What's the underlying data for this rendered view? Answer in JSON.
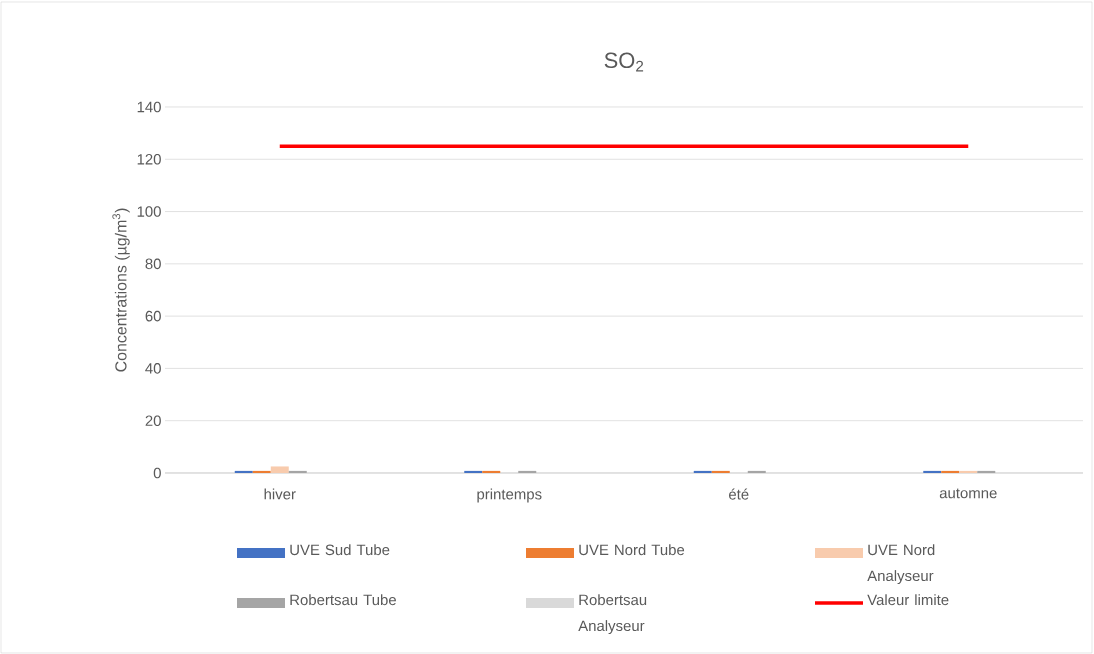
{
  "chart_data": {
    "type": "bar",
    "title": "SO$_{2}$",
    "ylabel": "Concentrations (µg/m$^{3}$)",
    "categories": [
      "hiver",
      "printemps",
      "été",
      "automne"
    ],
    "series": [
      {
        "name": "UVE Sud Tube",
        "color": "#4472c4",
        "values": [
          0.8,
          0.8,
          0.8,
          0.8
        ]
      },
      {
        "name": "UVE Nord Tube",
        "color": "#ed7d31",
        "values": [
          0.8,
          0.8,
          0.8,
          0.8
        ]
      },
      {
        "name": "UVE Nord Analyseur",
        "color": "#f8cbad",
        "values": [
          2.5,
          null,
          null,
          0.8
        ]
      },
      {
        "name": "Robertsau Tube",
        "color": "#a5a5a5",
        "values": [
          0.8,
          0.8,
          0.8,
          0.8
        ]
      },
      {
        "name": "Robertsau Analyseur",
        "color": "#d9d9d9",
        "values": [
          null,
          null,
          null,
          null
        ]
      },
      {
        "name": "Valeur limite",
        "type": "line",
        "color": "#ff0000",
        "values": [
          125,
          125,
          125,
          125
        ]
      }
    ],
    "ylim": [
      0,
      140
    ],
    "yticks": [
      0,
      20,
      40,
      60,
      80,
      100,
      120,
      140
    ],
    "grid": "y",
    "legend": "bottom"
  }
}
